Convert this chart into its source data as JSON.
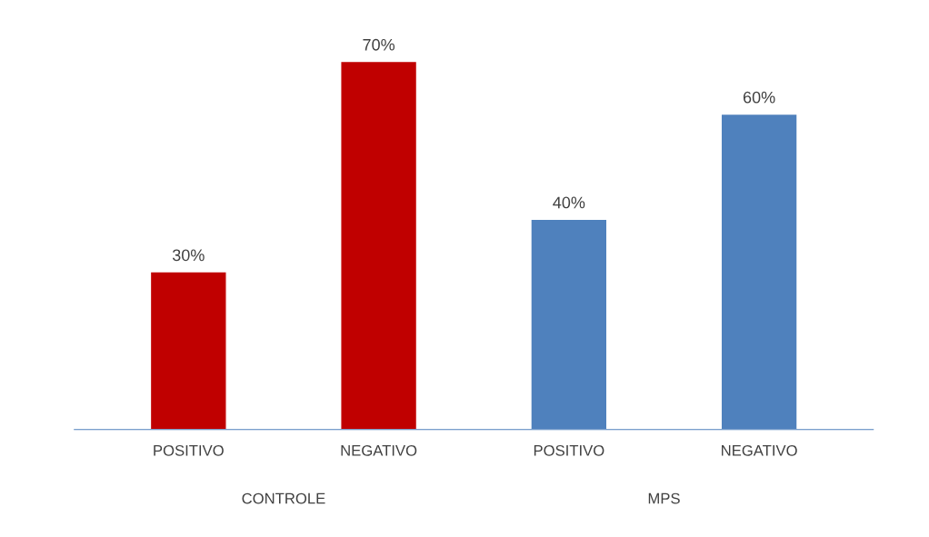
{
  "chart_data": {
    "type": "bar",
    "categories": [
      "POSITIVO",
      "NEGATIVO",
      "POSITIVO",
      "NEGATIVO"
    ],
    "values": [
      30,
      70,
      40,
      60
    ],
    "colors": [
      "#c00000",
      "#c00000",
      "#4f81bd",
      "#4f81bd"
    ],
    "value_labels": [
      "30%",
      "70%",
      "40%",
      "60%"
    ],
    "annotations": [
      "CONTROLE",
      "MPS"
    ]
  }
}
